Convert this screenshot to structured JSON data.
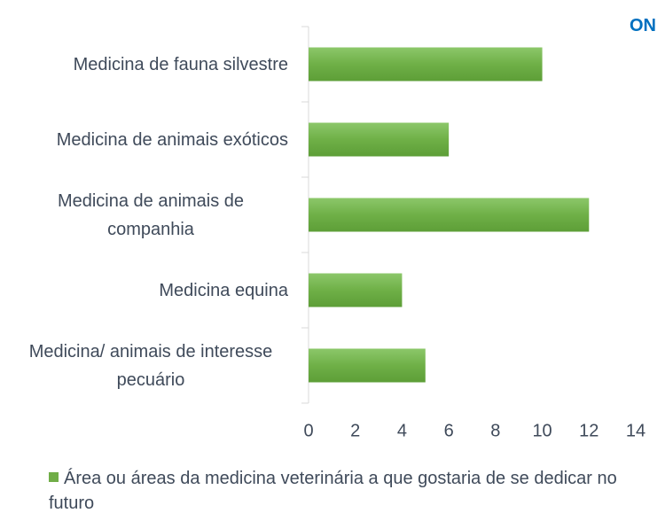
{
  "chart_data": {
    "type": "bar",
    "orientation": "horizontal",
    "annotation": "ON",
    "categories": [
      "Medicina de fauna silvestre",
      "Medicina de animais exóticos",
      "Medicina de animais de companhia",
      "Medicina equina",
      "Medicina/ animais de interesse pecuário"
    ],
    "series": [
      {
        "name": "Área ou áreas da medicina veterinária a que gostaria de se dedicar no futuro",
        "color": "#70ad47",
        "values": [
          10,
          6,
          12,
          4,
          5
        ]
      }
    ],
    "xlim": [
      0,
      14
    ],
    "xticks": [
      0,
      2,
      4,
      6,
      8,
      10,
      12,
      14
    ],
    "grid": false,
    "legend": "bottom"
  }
}
